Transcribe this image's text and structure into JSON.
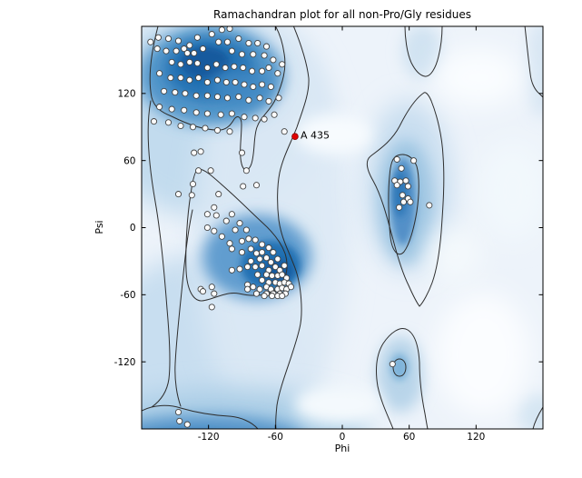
{
  "chart_data": {
    "type": "scatter",
    "title": "Ramachandran plot for all non-Pro/Gly residues",
    "xlabel": "Phi",
    "ylabel": "Psi",
    "xlim": [
      -180,
      180
    ],
    "ylim": [
      -180,
      180
    ],
    "xticks": [
      -120,
      -60,
      0,
      60,
      120
    ],
    "yticks": [
      -120,
      -60,
      0,
      60,
      120
    ],
    "grid": false,
    "legend": null,
    "annotation": {
      "label": "A 435",
      "phi": -42.4,
      "psi": 81.5
    },
    "colors": {
      "point_fill": "#fcfcfc",
      "point_edge": "#444444",
      "outlier_fill": "#e00000",
      "outlier_edge": "#8c0000",
      "contour": "#2e2e2e",
      "frame": "#000000",
      "density_high": "#135a9e",
      "density_mid": "#4d92c8",
      "density_low": "#c2dbee",
      "plot_bg": "#edf3fa"
    },
    "points": [
      [
        -172,
        166
      ],
      [
        -165,
        170
      ],
      [
        -166,
        160
      ],
      [
        -156,
        169
      ],
      [
        -158,
        158
      ],
      [
        -147,
        167
      ],
      [
        -149,
        158
      ],
      [
        -142,
        160
      ],
      [
        -137,
        163
      ],
      [
        -139,
        156
      ],
      [
        -130,
        170
      ],
      [
        -133,
        156
      ],
      [
        -125,
        160
      ],
      [
        -117,
        173
      ],
      [
        -108,
        177
      ],
      [
        -101,
        178
      ],
      [
        -111,
        166
      ],
      [
        -103,
        166
      ],
      [
        -93,
        169
      ],
      [
        -84,
        165
      ],
      [
        -76,
        165
      ],
      [
        -68,
        162
      ],
      [
        -99,
        158
      ],
      [
        -90,
        155
      ],
      [
        -80,
        155
      ],
      [
        -70,
        154
      ],
      [
        -62,
        150
      ],
      [
        -54,
        146
      ],
      [
        -153,
        148
      ],
      [
        -145,
        146
      ],
      [
        -137,
        148
      ],
      [
        -130,
        147
      ],
      [
        -121,
        143
      ],
      [
        -113,
        146
      ],
      [
        -105,
        143
      ],
      [
        -97,
        144
      ],
      [
        -89,
        143
      ],
      [
        -81,
        140
      ],
      [
        -72,
        140
      ],
      [
        -66,
        143
      ],
      [
        -58,
        138
      ],
      [
        -164,
        138
      ],
      [
        -154,
        134
      ],
      [
        -145,
        134
      ],
      [
        -137,
        132
      ],
      [
        -129,
        134
      ],
      [
        -121,
        130
      ],
      [
        -112,
        132
      ],
      [
        -104,
        130
      ],
      [
        -96,
        130
      ],
      [
        -88,
        128
      ],
      [
        -80,
        126
      ],
      [
        -72,
        128
      ],
      [
        -64,
        126
      ],
      [
        -160,
        122
      ],
      [
        -150,
        121
      ],
      [
        -141,
        120
      ],
      [
        -131,
        118
      ],
      [
        -121,
        118
      ],
      [
        -112,
        117
      ],
      [
        -103,
        116
      ],
      [
        -93,
        117
      ],
      [
        -84,
        114
      ],
      [
        -74,
        116
      ],
      [
        -66,
        113
      ],
      [
        -164,
        108
      ],
      [
        -153,
        106
      ],
      [
        -142,
        105
      ],
      [
        -131,
        103
      ],
      [
        -121,
        102
      ],
      [
        -109,
        101
      ],
      [
        -99,
        102
      ],
      [
        -88,
        99
      ],
      [
        -78,
        98
      ],
      [
        -70,
        97
      ],
      [
        -169,
        95
      ],
      [
        -156,
        94
      ],
      [
        -145,
        91
      ],
      [
        -134,
        90
      ],
      [
        -123,
        89
      ],
      [
        -112,
        87
      ],
      [
        -101,
        86
      ],
      [
        -57,
        116
      ],
      [
        -61,
        101
      ],
      [
        -52,
        86
      ],
      [
        -127,
        68
      ],
      [
        -133,
        67
      ],
      [
        -90,
        67
      ],
      [
        -129,
        51
      ],
      [
        -118,
        51
      ],
      [
        -86,
        51
      ],
      [
        -147,
        30
      ],
      [
        -135,
        29
      ],
      [
        -115,
        18
      ],
      [
        -134,
        39
      ],
      [
        -111,
        30
      ],
      [
        -89,
        37
      ],
      [
        -77,
        38
      ],
      [
        -121,
        0
      ],
      [
        -115,
        -3
      ],
      [
        -121,
        12
      ],
      [
        -113,
        11
      ],
      [
        -104,
        6
      ],
      [
        -99,
        12
      ],
      [
        -92,
        4
      ],
      [
        -86,
        -2
      ],
      [
        -96,
        -2
      ],
      [
        -108,
        -8
      ],
      [
        -101,
        -14
      ],
      [
        -90,
        -12
      ],
      [
        -84,
        -10
      ],
      [
        -78,
        -11
      ],
      [
        -72,
        -15
      ],
      [
        -82,
        -19
      ],
      [
        -90,
        -22
      ],
      [
        -99,
        -19
      ],
      [
        -77,
        -23
      ],
      [
        -72,
        -22
      ],
      [
        -66,
        -18
      ],
      [
        -62,
        -22
      ],
      [
        -68,
        -27
      ],
      [
        -74,
        -28
      ],
      [
        -82,
        -30
      ],
      [
        -64,
        -31
      ],
      [
        -58,
        -28
      ],
      [
        -72,
        -34
      ],
      [
        -78,
        -35
      ],
      [
        -66,
        -38
      ],
      [
        -60,
        -35
      ],
      [
        -56,
        -38
      ],
      [
        -52,
        -34
      ],
      [
        -68,
        -42
      ],
      [
        -76,
        -42
      ],
      [
        -63,
        -43
      ],
      [
        -58,
        -43
      ],
      [
        -54,
        -42
      ],
      [
        -50,
        -45
      ],
      [
        -72,
        -47
      ],
      [
        -66,
        -49
      ],
      [
        -60,
        -49
      ],
      [
        -56,
        -50
      ],
      [
        -52,
        -49
      ],
      [
        -48,
        -50
      ],
      [
        -68,
        -53
      ],
      [
        -64,
        -55
      ],
      [
        -58,
        -55
      ],
      [
        -54,
        -54
      ],
      [
        -50,
        -55
      ],
      [
        -46,
        -53
      ],
      [
        -74,
        -55
      ],
      [
        -80,
        -53
      ],
      [
        -85,
        -51
      ],
      [
        -68,
        -59
      ],
      [
        -62,
        -59
      ],
      [
        -56,
        -59
      ],
      [
        -51,
        -59
      ],
      [
        -85,
        -35
      ],
      [
        -92,
        -37
      ],
      [
        -99,
        -38
      ],
      [
        -117,
        -53
      ],
      [
        -127,
        -55
      ],
      [
        -115,
        -59
      ],
      [
        -125,
        -57
      ],
      [
        -117,
        -71
      ],
      [
        -85,
        -55
      ],
      [
        -77,
        -59
      ],
      [
        -70,
        -61
      ],
      [
        -63,
        -61
      ],
      [
        -58,
        -61
      ],
      [
        -54,
        -61
      ],
      [
        49,
        61
      ],
      [
        53,
        53
      ],
      [
        64,
        60
      ],
      [
        47,
        42
      ],
      [
        52,
        41
      ],
      [
        57,
        42
      ],
      [
        49,
        38
      ],
      [
        59,
        37
      ],
      [
        54,
        29
      ],
      [
        59,
        26
      ],
      [
        55,
        23
      ],
      [
        61,
        23
      ],
      [
        51,
        18
      ],
      [
        78,
        20
      ],
      [
        -147,
        -165
      ],
      [
        -146,
        -173
      ],
      [
        -139,
        -176
      ],
      [
        45,
        -122
      ]
    ],
    "contour_paths": [
      "M 174,29 C 168,52 162,82 167,107 C 170,119 179,124 189,128 C 207,137 227,144 243,143 C 251,142 255,136 258,131 C 262,126 266,129 266,137 C 266,152 263,168 266,180 C 268,189 274,189 277,180 C 281,167 279,151 283,140 C 287,128 298,122 304,108 C 311,92 316,76 313,59 C 311,45 307,35 303,28",
      "M 323,28 C 330,45 338,68 340,86 C 341,103 333,122 327,140 C 320,158 312,172 308,190 C 305,205 305,225 307,242 C 310,263 318,276 325,295 C 332,314 334,345 330,361 C 323,391 309,421 305,446 C 304,456 303,465 304,472",
      "M 166,111 C 160,142 164,182 171,222 C 177,256 181,300 184,340 C 187,374 188,400 186,417 C 184,431 177,441 167,448",
      "M 212,231 C 206,259 203,291 200,321 C 197,350 194,378 193,400 C 192,419 195,436 199,447",
      "M 219,186 C 225,186 234,194 244,203 C 259,216 276,233 289,245 C 299,254 309,265 314,279 C 318,292 316,306 309,314 C 298,326 280,327 263,323 C 248,320 233,331 221,331 C 212,330 206,318 205,298 C 204,274 206,238 210,214 C 212,199 215,186 219,186 Z",
      "M 156,452 C 170,445 186,445 199,449 C 216,454 236,457 252,458 C 265,459 277,464 284,472",
      "M 467,102 C 458,108 449,121 440,139 C 431,156 417,165 408,172 C 402,177 404,187 411,199 C 421,217 427,242 433,264 C 438,283 444,302 450,314 C 454,323 459,333 462,337 C 466,333 472,322 476,311 C 481,297 484,279 486,255 C 488,227 490,199 488,172 C 487,149 481,126 475,111 C 472,104 469,101 467,102 Z",
      "M 438,171 C 446,168 455,172 459,183 C 462,194 462,213 459,233 C 456,251 451,269 445,277 C 439,284 432,277 430,261 C 428,242 427,214 429,194 C 430,181 432,173 438,171 Z",
      "M 433,472 C 428,459 420,444 416,425 C 413,407 414,391 422,378 C 430,366 441,358 449,363 C 457,368 461,381 462,399 C 462,418 465,440 468,455 C 469,461 470,467 471,472",
      "M 440,395 C 444,395 447,399 447,404 C 447,410 444,414 440,414 C 436,414 433,410 433,404 C 433,399 436,395 440,395 Z",
      "M 446,28 C 446,41 448,58 453,69 C 457,77 462,83 468,84 C 474,85 480,75 483,62 C 486,50 487,39 487,28",
      "M 578,28 C 580,46 582,66 584,81 C 585,91 589,99 594,103 C 596,105 597,106 598,107",
      "M 598,448 C 593,456 589,464 587,472"
    ],
    "density_blobs": [
      [
        230,
        125,
        125,
        115,
        "#c2dbee",
        "l",
        1
      ],
      [
        222,
        395,
        118,
        115,
        "#c8def0",
        "l",
        1
      ],
      [
        300,
        250,
        85,
        225,
        "#dce9f5",
        "l",
        0.9
      ],
      [
        233,
        84,
        80,
        55,
        "#4d92c8",
        "m",
        0.95
      ],
      [
        231,
        76,
        50,
        34,
        "#2471b3",
        "m",
        1
      ],
      [
        226,
        69,
        27,
        18,
        "#135a9e",
        "s",
        1
      ],
      [
        264,
        96,
        32,
        20,
        "#4088c3",
        "m",
        0.9
      ],
      [
        283,
        283,
        60,
        47,
        "#5b99ce",
        "m",
        0.95
      ],
      [
        298,
        292,
        33,
        27,
        "#2471b3",
        "s",
        1
      ],
      [
        306,
        298,
        16,
        13,
        "#135a9e",
        "s",
        1
      ],
      [
        255,
        468,
        150,
        40,
        "#a9cce6",
        "l",
        0.95
      ],
      [
        228,
        483,
        108,
        26,
        "#5795ca",
        "m",
        1
      ],
      [
        212,
        489,
        58,
        15,
        "#2f78b8",
        "s",
        1
      ],
      [
        450,
        205,
        48,
        95,
        "#c6dcef",
        "l",
        0.95
      ],
      [
        447,
        222,
        30,
        68,
        "#9cc4e2",
        "m",
        0.95
      ],
      [
        444,
        222,
        14,
        48,
        "#5290c8",
        "s",
        1
      ],
      [
        441,
        213,
        8,
        26,
        "#2f78b8",
        "s",
        1
      ],
      [
        441,
        412,
        26,
        42,
        "#b3d2e8",
        "m",
        0.9
      ],
      [
        440,
        404,
        10,
        15,
        "#7fb4da",
        "s",
        1
      ],
      [
        465,
        57,
        22,
        30,
        "#cde1f1",
        "m",
        0.9
      ],
      [
        596,
        75,
        16,
        55,
        "#d6e6f3",
        "m",
        0.9
      ],
      [
        592,
        455,
        22,
        22,
        "#d3e4f2",
        "m",
        0.9
      ],
      [
        565,
        210,
        38,
        55,
        "#f2f8fd",
        "l",
        0.9
      ],
      [
        527,
        85,
        48,
        32,
        "#fafdff",
        "l",
        1
      ],
      [
        532,
        390,
        52,
        68,
        "#fbfdff",
        "l",
        1
      ],
      [
        372,
        445,
        48,
        22,
        "#f4f9fd",
        "m",
        1
      ],
      [
        368,
        148,
        42,
        22,
        "#f7fbfe",
        "m",
        1
      ],
      [
        500,
        280,
        30,
        30,
        "#f6fafd",
        "l",
        0.85
      ]
    ]
  }
}
